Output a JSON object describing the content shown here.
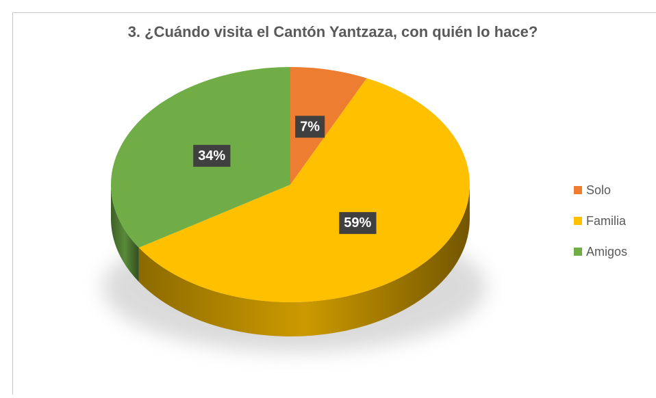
{
  "chart_data": {
    "type": "pie",
    "title": "3. ¿Cuándo visita el Cantón Yantzaza, con quién lo hace?",
    "categories": [
      "Solo",
      "Familia",
      "Amigos"
    ],
    "values": [
      7,
      59,
      34
    ],
    "value_labels": [
      "7%",
      "59%",
      "34%"
    ],
    "colors": [
      "#ED7D31",
      "#FFC000",
      "#70AD47"
    ],
    "legend": "right"
  }
}
